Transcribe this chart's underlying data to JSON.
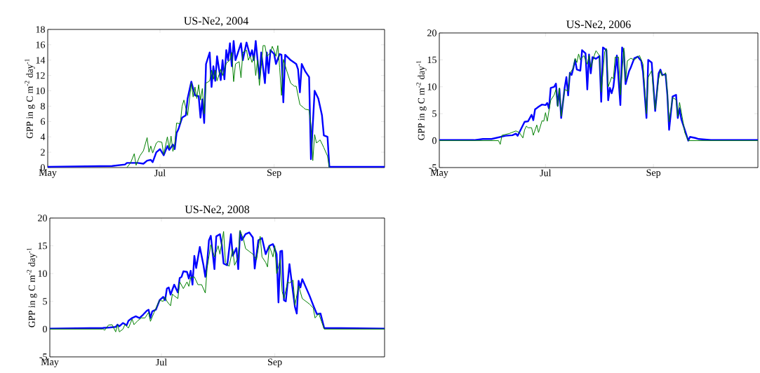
{
  "chart_data": [
    {
      "type": "line",
      "title": "US-Ne2, 2004",
      "ylabel": "GPP in g C m$^{-2}$ day$^{-1}$",
      "xlim": [
        "2004-05-01",
        "2004-10-31"
      ],
      "xticks": [
        {
          "value": "2004-05-01",
          "label": "May"
        },
        {
          "value": "2004-07-01",
          "label": "Jul"
        },
        {
          "value": "2004-09-01",
          "label": "Sep"
        }
      ],
      "ylim": [
        0,
        18
      ],
      "yticks": [
        0,
        2,
        4,
        6,
        8,
        10,
        12,
        14,
        16,
        18
      ],
      "series": [
        {
          "color": "#0000ff",
          "x": [
            "2004-05-01",
            "2004-06-05",
            "2004-06-12",
            "2004-06-13",
            "2004-06-19",
            "2004-06-22",
            "2004-06-24",
            "2004-06-26",
            "2004-06-27",
            "2004-06-29",
            "2004-07-01",
            "2004-07-03",
            "2004-07-05",
            "2004-07-06",
            "2004-07-08",
            "2004-07-09",
            "2004-07-10",
            "2004-07-11",
            "2004-07-13",
            "2004-07-15",
            "2004-07-16",
            "2004-07-18",
            "2004-07-20",
            "2004-07-22",
            "2004-07-23",
            "2004-07-24",
            "2004-07-25",
            "2004-07-26",
            "2004-07-28",
            "2004-07-29",
            "2004-07-30",
            "2004-07-31",
            "2004-08-01",
            "2004-08-03",
            "2004-08-04",
            "2004-08-05",
            "2004-08-06",
            "2004-08-07",
            "2004-08-08",
            "2004-08-09",
            "2004-08-10",
            "2004-08-11",
            "2004-08-14",
            "2004-08-15",
            "2004-08-17",
            "2004-08-19",
            "2004-08-20",
            "2004-08-21",
            "2004-08-22",
            "2004-08-24",
            "2004-08-25",
            "2004-08-27",
            "2004-08-28",
            "2004-08-29",
            "2004-08-30",
            "2004-09-01",
            "2004-09-02",
            "2004-09-04",
            "2004-09-05",
            "2004-09-06",
            "2004-09-07",
            "2004-09-10",
            "2004-09-13",
            "2004-09-14",
            "2004-09-15",
            "2004-09-16",
            "2004-09-18",
            "2004-09-20",
            "2004-09-21",
            "2004-09-23",
            "2004-09-25",
            "2004-09-27",
            "2004-09-28",
            "2004-09-30",
            "2004-10-01",
            "2004-10-31"
          ],
          "values": [
            0.1,
            0.2,
            0.4,
            0.6,
            0.6,
            0.5,
            0.9,
            1.0,
            0.7,
            2.0,
            2.4,
            1.6,
            2.8,
            2.3,
            3.0,
            2.4,
            4.5,
            5.0,
            6.5,
            6.8,
            9.0,
            11.2,
            9.4,
            9.3,
            6.5,
            8.9,
            5.8,
            13.5,
            15.0,
            10.5,
            13.2,
            11.3,
            14.5,
            11.4,
            14.0,
            11.5,
            15.3,
            14.0,
            16.2,
            13.2,
            16.5,
            14.0,
            16.2,
            14.0,
            16.3,
            14.5,
            15.3,
            14.0,
            16.5,
            11.6,
            15.0,
            11.0,
            15.0,
            12.3,
            15.3,
            14.8,
            13.5,
            14.8,
            14.7,
            8.5,
            14.7,
            14.0,
            13.5,
            12.8,
            9.8,
            13.5,
            12.5,
            11.8,
            1.1,
            10.0,
            9.0,
            6.8,
            4.2,
            4.0,
            0.1,
            0.1
          ]
        },
        {
          "color": "#008000",
          "x": [
            "2004-06-13",
            "2004-06-15",
            "2004-06-17",
            "2004-06-18",
            "2004-06-20",
            "2004-06-22",
            "2004-06-24",
            "2004-06-25",
            "2004-06-26",
            "2004-06-27",
            "2004-06-29",
            "2004-06-30",
            "2004-07-02",
            "2004-07-03",
            "2004-07-05",
            "2004-07-06",
            "2004-07-07",
            "2004-07-08",
            "2004-07-09",
            "2004-07-10",
            "2004-07-12",
            "2004-07-13",
            "2004-07-14",
            "2004-07-16",
            "2004-07-18",
            "2004-07-19",
            "2004-07-20",
            "2004-07-21",
            "2004-07-22",
            "2004-07-23",
            "2004-07-24",
            "2004-07-25",
            "2004-07-26",
            "2004-07-28",
            "2004-07-29",
            "2004-07-30",
            "2004-07-31",
            "2004-08-01",
            "2004-08-03",
            "2004-08-04",
            "2004-08-06",
            "2004-08-08",
            "2004-08-09",
            "2004-08-10",
            "2004-08-11",
            "2004-08-13",
            "2004-08-14",
            "2004-08-15",
            "2004-08-17",
            "2004-08-18",
            "2004-08-19",
            "2004-08-20",
            "2004-08-21",
            "2004-08-22",
            "2004-08-23",
            "2004-08-24",
            "2004-08-25",
            "2004-08-26",
            "2004-08-27",
            "2004-08-28",
            "2004-08-29",
            "2004-08-30",
            "2004-08-31",
            "2004-09-01",
            "2004-09-02",
            "2004-09-03",
            "2004-09-04",
            "2004-09-05",
            "2004-09-06",
            "2004-09-08",
            "2004-09-10",
            "2004-09-12",
            "2004-09-13",
            "2004-09-15",
            "2004-09-17",
            "2004-09-18",
            "2004-09-20",
            "2004-09-21",
            "2004-09-22",
            "2004-09-23",
            "2004-09-24",
            "2004-09-26",
            "2004-09-28",
            "2004-09-30",
            "2004-10-01"
          ],
          "values": [
            0,
            0.6,
            1.8,
            0.3,
            1.5,
            2.2,
            3.9,
            2.0,
            2.8,
            1.9,
            3.2,
            3.4,
            3.3,
            1.7,
            4.0,
            2.5,
            4.1,
            2.1,
            3.0,
            5.8,
            5.7,
            8.0,
            8.8,
            6.8,
            11.0,
            9.2,
            10.5,
            9.0,
            10.8,
            8.8,
            10.3,
            7.0,
            11.0,
            11.3,
            12.7,
            11.5,
            12.7,
            11.3,
            12.8,
            12.0,
            13.6,
            14.0,
            15.0,
            11.2,
            13.5,
            13.8,
            11.7,
            15.0,
            15.3,
            14.0,
            14.5,
            13.7,
            14.6,
            12.0,
            14.0,
            10.7,
            13.2,
            15.9,
            15.9,
            14.5,
            14.7,
            15.0,
            15.8,
            15.2,
            14.5,
            15.9,
            13.0,
            9.4,
            14.1,
            12.5,
            11.0,
            10.6,
            10.6,
            8.2,
            7.8,
            7.6,
            7.5,
            5.5,
            0.9,
            4.3,
            3.2,
            3.6,
            2.6,
            1.5,
            0
          ]
        }
      ]
    },
    {
      "type": "line",
      "title": "US-Ne2, 2006",
      "ylabel": "GPP in g C m$^{-2}$ day$^{-1}$",
      "xlim": [
        "2006-05-01",
        "2006-10-31"
      ],
      "xticks": [
        {
          "value": "2006-05-01",
          "label": "May"
        },
        {
          "value": "2006-07-01",
          "label": "Jul"
        },
        {
          "value": "2006-09-01",
          "label": "Sep"
        }
      ],
      "ylim": [
        -5,
        20
      ],
      "yticks": [
        -5,
        0,
        5,
        10,
        15,
        20
      ],
      "series": [
        {
          "color": "#0000ff",
          "x": [
            "2006-05-01",
            "2006-05-21",
            "2006-05-26",
            "2006-05-31",
            "2006-06-04",
            "2006-06-08",
            "2006-06-12",
            "2006-06-14",
            "2006-06-15",
            "2006-06-17",
            "2006-06-19",
            "2006-06-21",
            "2006-06-22",
            "2006-06-23",
            "2006-06-24",
            "2006-06-25",
            "2006-06-27",
            "2006-06-29",
            "2006-07-01",
            "2006-07-02",
            "2006-07-03",
            "2006-07-04",
            "2006-07-06",
            "2006-07-07",
            "2006-07-08",
            "2006-07-09",
            "2006-07-10",
            "2006-07-12",
            "2006-07-13",
            "2006-07-14",
            "2006-07-15",
            "2006-07-16",
            "2006-07-17",
            "2006-07-18",
            "2006-07-19",
            "2006-07-21",
            "2006-07-22",
            "2006-07-23",
            "2006-07-24",
            "2006-07-25",
            "2006-07-26",
            "2006-07-27",
            "2006-07-28",
            "2006-07-30",
            "2006-08-01",
            "2006-08-02",
            "2006-08-03",
            "2006-08-05",
            "2006-08-06",
            "2006-08-07",
            "2006-08-08",
            "2006-08-09",
            "2006-08-11",
            "2006-08-13",
            "2006-08-14",
            "2006-08-15",
            "2006-08-16",
            "2006-08-18",
            "2006-08-19",
            "2006-08-21",
            "2006-08-23",
            "2006-08-25",
            "2006-08-26",
            "2006-08-28",
            "2006-08-29",
            "2006-08-31",
            "2006-09-01",
            "2006-09-02",
            "2006-09-04",
            "2006-09-05",
            "2006-09-06",
            "2006-09-08",
            "2006-09-09",
            "2006-09-10",
            "2006-09-12",
            "2006-09-14",
            "2006-09-15",
            "2006-09-16",
            "2006-09-17",
            "2006-09-19",
            "2006-09-21",
            "2006-09-22",
            "2006-09-25",
            "2006-09-27",
            "2006-10-04",
            "2006-10-31"
          ],
          "values": [
            0.1,
            0.1,
            0.3,
            0.3,
            0.6,
            0.9,
            1.0,
            1.3,
            0.9,
            2.2,
            3.5,
            3.6,
            4.2,
            4.8,
            3.8,
            5.8,
            6.3,
            6.7,
            6.6,
            7.0,
            6.0,
            9.8,
            10.0,
            10.6,
            6.5,
            9.6,
            4.2,
            9.8,
            11.8,
            8.4,
            12.6,
            12.2,
            13.5,
            15.0,
            13.2,
            13.0,
            16.8,
            16.5,
            16.2,
            9.5,
            16.0,
            12.5,
            15.5,
            15.2,
            15.7,
            7.2,
            17.3,
            16.8,
            7.5,
            9.8,
            8.8,
            10.0,
            15.8,
            6.6,
            17.3,
            16.5,
            10.5,
            12.9,
            13.6,
            15.3,
            15.6,
            14.8,
            12.8,
            4.2,
            15.0,
            14.5,
            10.0,
            5.5,
            12.5,
            13.2,
            12.2,
            12.3,
            8.5,
            2.0,
            8.2,
            8.5,
            4.2,
            6.0,
            4.0,
            2.0,
            0.0,
            0.7,
            0.5,
            0.3,
            0.1,
            0.1
          ]
        },
        {
          "color": "#008000",
          "x": [
            "2006-05-01",
            "2006-06-04",
            "2006-06-05",
            "2006-06-06",
            "2006-06-10",
            "2006-06-14",
            "2006-06-16",
            "2006-06-18",
            "2006-06-19",
            "2006-06-20",
            "2006-06-21",
            "2006-06-23",
            "2006-06-24",
            "2006-06-26",
            "2006-06-27",
            "2006-06-29",
            "2006-06-30",
            "2006-07-01",
            "2006-07-02",
            "2006-07-04",
            "2006-07-06",
            "2006-07-07",
            "2006-07-08",
            "2006-07-09",
            "2006-07-10",
            "2006-07-12",
            "2006-07-14",
            "2006-07-15",
            "2006-07-17",
            "2006-07-18",
            "2006-07-19",
            "2006-07-20",
            "2006-07-21",
            "2006-07-23",
            "2006-07-25",
            "2006-07-26",
            "2006-07-27",
            "2006-07-29",
            "2006-07-30",
            "2006-08-01",
            "2006-08-02",
            "2006-08-04",
            "2006-08-05",
            "2006-08-06",
            "2006-08-08",
            "2006-08-09",
            "2006-08-10",
            "2006-08-12",
            "2006-08-13",
            "2006-08-15",
            "2006-08-16",
            "2006-08-17",
            "2006-08-19",
            "2006-08-21",
            "2006-08-24",
            "2006-08-26",
            "2006-08-28",
            "2006-08-29",
            "2006-08-31",
            "2006-09-02",
            "2006-09-04",
            "2006-09-05",
            "2006-09-06",
            "2006-09-08",
            "2006-09-09",
            "2006-09-10",
            "2006-09-12",
            "2006-09-14",
            "2006-09-15",
            "2006-09-16",
            "2006-09-18",
            "2006-09-19",
            "2006-09-21",
            "2006-10-31"
          ],
          "values": [
            0,
            0,
            -0.7,
            1.0,
            1.3,
            1.8,
            1.5,
            0.5,
            2.0,
            2.7,
            2.4,
            2.4,
            1.0,
            2.9,
            1.5,
            3.7,
            3.6,
            5.2,
            3.6,
            7.5,
            8.5,
            9.5,
            6.3,
            9.8,
            4.5,
            9.5,
            9.2,
            12.5,
            13.5,
            15.3,
            14.5,
            16.1,
            15.0,
            15.8,
            14.2,
            15.8,
            13.6,
            15.8,
            16.7,
            15.8,
            9.0,
            16.5,
            17.1,
            10.0,
            11.8,
            11.5,
            15.5,
            15.5,
            8.5,
            17.2,
            11.0,
            14.8,
            15.3,
            15.0,
            15.8,
            14.2,
            5.0,
            11.8,
            13.0,
            5.8,
            11.5,
            13.0,
            12.0,
            12.6,
            9.0,
            3.5,
            8.0,
            7.6,
            4.5,
            7.1,
            3.5,
            1.5,
            0,
            0
          ]
        }
      ]
    },
    {
      "type": "line",
      "title": "US-Ne2, 2008",
      "ylabel": "GPP in g C m$^{-2}$ day$^{-1}$",
      "xlim": [
        "2008-05-01",
        "2008-10-31"
      ],
      "xticks": [
        {
          "value": "2008-05-01",
          "label": "May"
        },
        {
          "value": "2008-07-01",
          "label": "Jul"
        },
        {
          "value": "2008-09-01",
          "label": "Sep"
        }
      ],
      "ylim": [
        -5,
        20
      ],
      "yticks": [
        -5,
        0,
        5,
        10,
        15,
        20
      ],
      "series": [
        {
          "color": "#0000ff",
          "x": [
            "2008-05-01",
            "2008-05-30",
            "2008-06-03",
            "2008-06-06",
            "2008-06-07",
            "2008-06-08",
            "2008-06-10",
            "2008-06-12",
            "2008-06-13",
            "2008-06-15",
            "2008-06-17",
            "2008-06-19",
            "2008-06-21",
            "2008-06-23",
            "2008-06-24",
            "2008-06-25",
            "2008-06-26",
            "2008-06-28",
            "2008-06-30",
            "2008-07-02",
            "2008-07-03",
            "2008-07-04",
            "2008-07-05",
            "2008-07-06",
            "2008-07-08",
            "2008-07-10",
            "2008-07-11",
            "2008-07-12",
            "2008-07-13",
            "2008-07-15",
            "2008-07-16",
            "2008-07-17",
            "2008-07-18",
            "2008-07-19",
            "2008-07-20",
            "2008-07-22",
            "2008-07-24",
            "2008-07-25",
            "2008-07-26",
            "2008-07-27",
            "2008-07-28",
            "2008-07-30",
            "2008-07-31",
            "2008-08-02",
            "2008-08-03",
            "2008-08-04",
            "2008-08-06",
            "2008-08-08",
            "2008-08-09",
            "2008-08-11",
            "2008-08-12",
            "2008-08-13",
            "2008-08-14",
            "2008-08-16",
            "2008-08-18",
            "2008-08-20",
            "2008-08-21",
            "2008-08-23",
            "2008-08-25",
            "2008-08-27",
            "2008-08-29",
            "2008-08-31",
            "2008-09-02",
            "2008-09-03",
            "2008-09-04",
            "2008-09-05",
            "2008-09-06",
            "2008-09-07",
            "2008-09-09",
            "2008-09-11",
            "2008-09-12",
            "2008-09-13",
            "2008-09-14",
            "2008-09-15",
            "2008-09-16",
            "2008-09-20",
            "2008-09-22",
            "2008-09-24",
            "2008-09-26",
            "2008-09-28",
            "2008-10-31"
          ],
          "values": [
            0.1,
            0.2,
            0.3,
            0.4,
            0.8,
            0.5,
            1.1,
            0.7,
            1.5,
            2.0,
            2.3,
            2.0,
            2.6,
            3.3,
            3.5,
            2.0,
            3.2,
            3.5,
            5.2,
            5.8,
            5.2,
            7.3,
            7.5,
            6.2,
            8.0,
            6.6,
            9.2,
            9.4,
            10.4,
            10.3,
            9.1,
            10.5,
            8.0,
            13.2,
            11.0,
            14.8,
            11.5,
            9.4,
            12.0,
            16.0,
            16.8,
            10.8,
            16.7,
            17.1,
            15.2,
            11.8,
            11.5,
            17.1,
            13.2,
            14.6,
            10.8,
            17.5,
            16.0,
            17.1,
            17.4,
            16.5,
            10.9,
            16.0,
            16.4,
            13.5,
            15.0,
            15.3,
            13.5,
            4.8,
            14.0,
            14.1,
            5.2,
            5.0,
            11.7,
            6.5,
            4.0,
            2.8,
            8.7,
            7.5,
            9.0,
            6.0,
            4.3,
            2.7,
            2.8,
            0.2,
            0.1
          ]
        },
        {
          "color": "#008000",
          "x": [
            "2008-05-01",
            "2008-05-30",
            "2008-05-31",
            "2008-06-02",
            "2008-06-04",
            "2008-06-06",
            "2008-06-07",
            "2008-06-08",
            "2008-06-10",
            "2008-06-11",
            "2008-06-13",
            "2008-06-15",
            "2008-06-16",
            "2008-06-18",
            "2008-06-20",
            "2008-06-22",
            "2008-06-24",
            "2008-06-25",
            "2008-06-27",
            "2008-06-29",
            "2008-06-30",
            "2008-07-02",
            "2008-07-03",
            "2008-07-04",
            "2008-07-06",
            "2008-07-07",
            "2008-07-08",
            "2008-07-10",
            "2008-07-11",
            "2008-07-13",
            "2008-07-15",
            "2008-07-16",
            "2008-07-17",
            "2008-07-19",
            "2008-07-21",
            "2008-07-23",
            "2008-07-25",
            "2008-07-26",
            "2008-07-28",
            "2008-07-30",
            "2008-08-01",
            "2008-08-02",
            "2008-08-04",
            "2008-08-05",
            "2008-08-07",
            "2008-08-09",
            "2008-08-10",
            "2008-08-12",
            "2008-08-13",
            "2008-08-15",
            "2008-08-16",
            "2008-08-18",
            "2008-08-20",
            "2008-08-22",
            "2008-08-24",
            "2008-08-25",
            "2008-08-27",
            "2008-08-28",
            "2008-08-29",
            "2008-08-31",
            "2008-09-01",
            "2008-09-02",
            "2008-09-04",
            "2008-09-05",
            "2008-09-06",
            "2008-09-08",
            "2008-09-09",
            "2008-09-11",
            "2008-09-12",
            "2008-09-14",
            "2008-09-16",
            "2008-09-18",
            "2008-09-20",
            "2008-09-22",
            "2008-09-23",
            "2008-09-25",
            "2008-09-28",
            "2008-10-31"
          ],
          "values": [
            0,
            0,
            -0.2,
            0.7,
            0.8,
            -0.5,
            0.8,
            -0.5,
            0,
            0.8,
            0.2,
            1.8,
            0.8,
            1.5,
            2.0,
            2.0,
            3.0,
            1.4,
            3.0,
            4.5,
            5.2,
            5.0,
            5.8,
            5.0,
            4.2,
            6.3,
            6.0,
            5.5,
            8.5,
            7.3,
            8.5,
            7.7,
            9.3,
            9.4,
            8.0,
            8.0,
            6.5,
            11.0,
            15.2,
            13.0,
            15.0,
            13.5,
            17.6,
            12.0,
            11.3,
            14.4,
            11.5,
            13.0,
            17.8,
            16.0,
            14.5,
            14.0,
            13.5,
            12.5,
            16.7,
            13.0,
            12.0,
            11.2,
            15.0,
            13.0,
            15.0,
            10.0,
            12.5,
            6.8,
            5.5,
            8.5,
            8.3,
            8.8,
            4.3,
            7.8,
            5.5,
            5.0,
            4.5,
            3.8,
            2.0,
            2.8,
            0,
            0
          ]
        }
      ]
    }
  ]
}
